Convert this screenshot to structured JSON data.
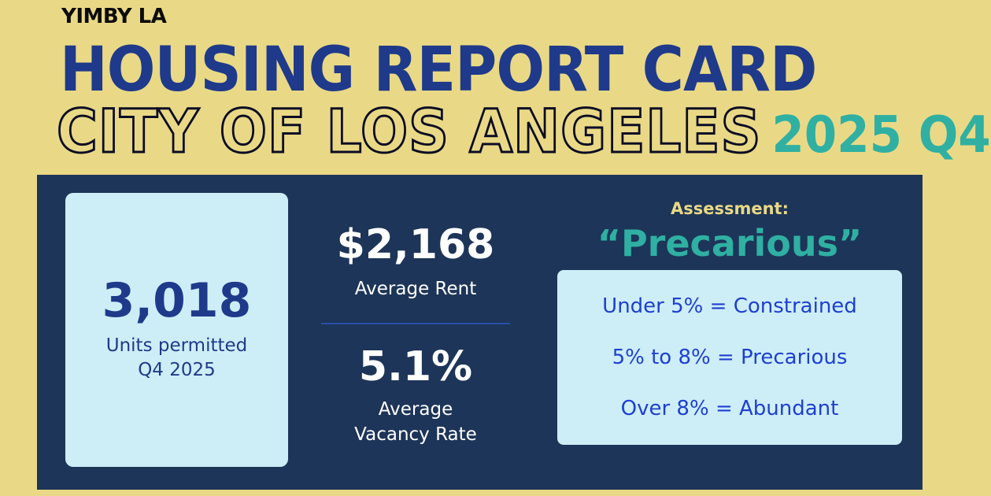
{
  "header": {
    "brand": "YIMBY LA",
    "title": "HOUSING REPORT CARD",
    "city": "CITY OF LOS ANGELES",
    "period": "2025 Q4"
  },
  "permits": {
    "value": "3,018",
    "label_line1": "Units permitted",
    "label_line2": "Q4 2025"
  },
  "rent": {
    "value": "$2,168",
    "label": "Average Rent"
  },
  "vacancy": {
    "value": "5.1%",
    "label_line1": "Average",
    "label_line2": "Vacancy Rate"
  },
  "assessment": {
    "label": "Assessment:",
    "value": "“Precarious”",
    "scale": [
      "Under 5% = Constrained",
      "5% to 8% = Precarious",
      "Over 8% = Abundant"
    ]
  },
  "colors": {
    "background": "#e9d986",
    "panel": "#1d3558",
    "title_blue": "#1f3a8a",
    "teal": "#2fb0a2",
    "card": "#cdeef7"
  }
}
